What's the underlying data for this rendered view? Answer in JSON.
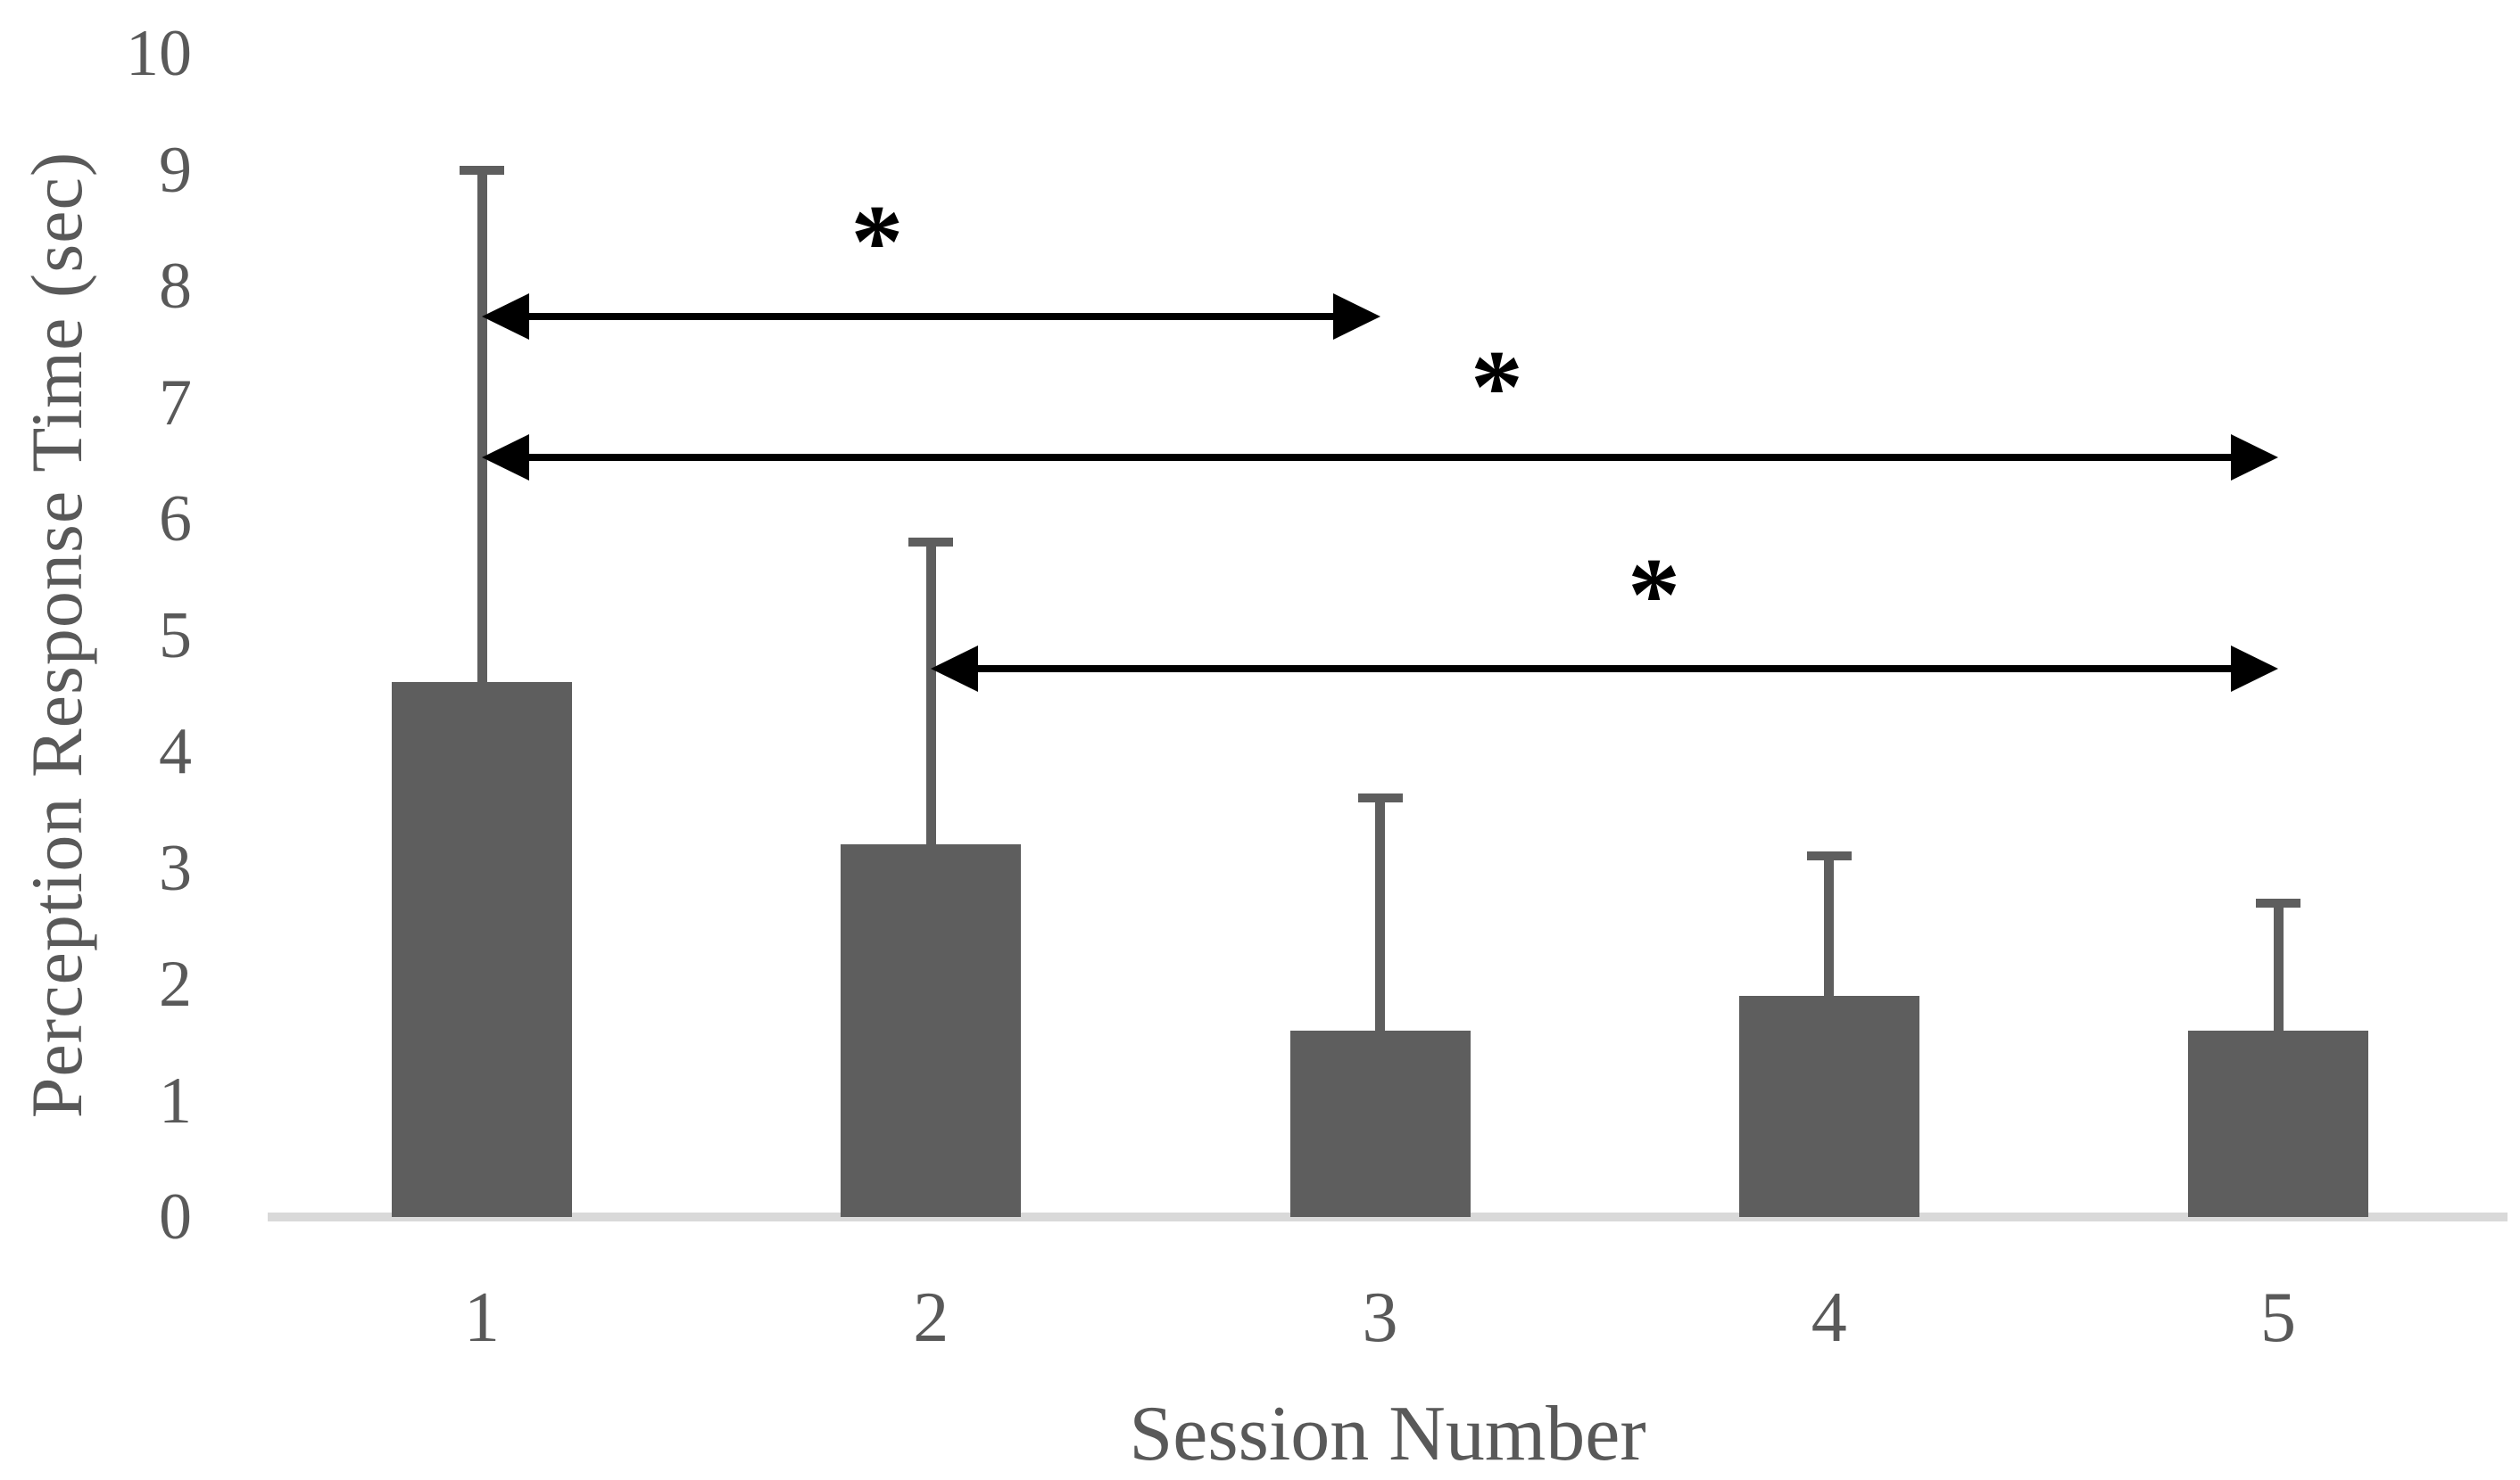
{
  "chart_data": {
    "type": "bar",
    "title": "",
    "xlabel": "Session Number",
    "ylabel": "Perception Response Time (sec)",
    "categories": [
      "1",
      "2",
      "3",
      "4",
      "5"
    ],
    "series": [
      {
        "name": "Perception Response Time (sec)",
        "values": [
          4.6,
          3.2,
          1.6,
          1.9,
          1.6
        ],
        "error_upper": [
          4.4,
          2.6,
          2.0,
          1.2,
          1.1
        ]
      }
    ],
    "ylim": [
      0,
      10
    ],
    "yticks": [
      0,
      1,
      2,
      3,
      4,
      5,
      6,
      7,
      8,
      9,
      10
    ],
    "grid": false,
    "legend": "none",
    "colors": {
      "bar": "#5e5e5e",
      "error_bar": "#5e5e5e",
      "baseline": "#d9d9d9",
      "axis_text": "#595959",
      "annotation": "#000000"
    },
    "significance_arrows": [
      {
        "from_session": 1,
        "to_session": 3,
        "y_sec": 7.74,
        "label": "*",
        "label_x_session": 1.88,
        "label_y_sec": 8.6
      },
      {
        "from_session": 1,
        "to_session": 5,
        "y_sec": 6.53,
        "label": "*",
        "label_x_session": 3.26,
        "label_y_sec": 7.35
      },
      {
        "from_session": 2,
        "to_session": 5,
        "y_sec": 4.71,
        "label": "*",
        "label_x_session": 3.61,
        "label_y_sec": 5.56
      }
    ]
  }
}
